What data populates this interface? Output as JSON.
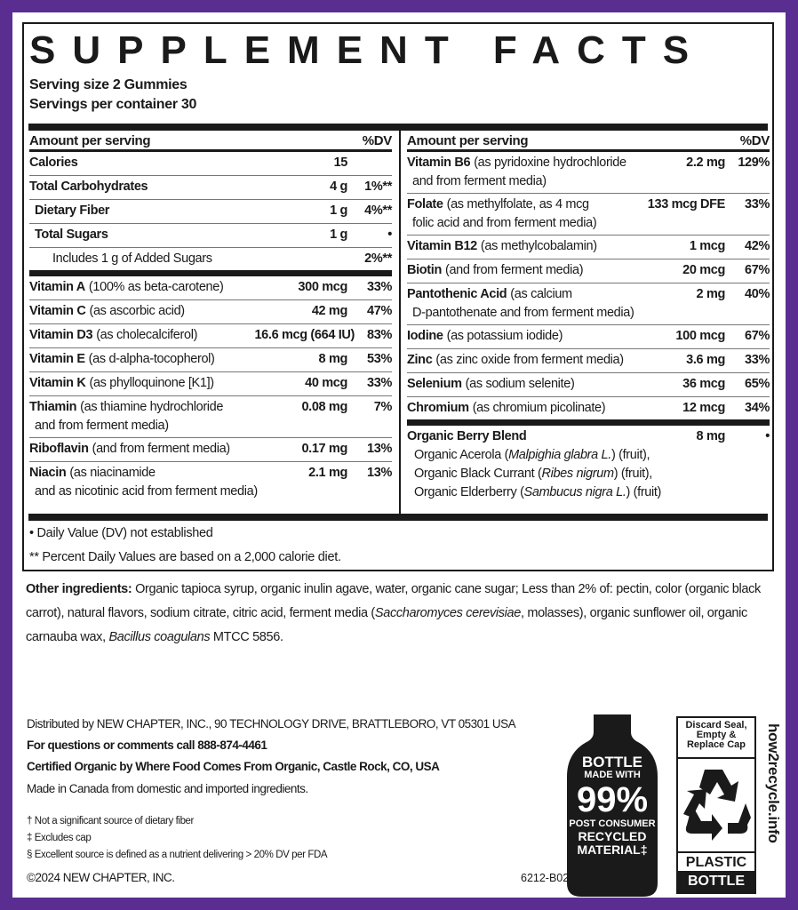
{
  "title": "SUPPLEMENT FACTS",
  "serving_size": "Serving size 2 Gummies",
  "servings_per_container": "Servings per container 30",
  "col_header": {
    "amount": "Amount per serving",
    "dv": "%DV"
  },
  "left_rows": [
    {
      "name": "Calories",
      "desc": "",
      "amount": "15",
      "dv": "",
      "indent": 0
    },
    {
      "name": "Total Carbohydrates",
      "desc": "",
      "amount": "4 g",
      "dv": "1%**",
      "indent": 0
    },
    {
      "name": "Dietary Fiber",
      "desc": "",
      "amount": "1 g",
      "dv": "4%**",
      "indent": 1
    },
    {
      "name": "Total Sugars",
      "desc": "",
      "amount": "1 g",
      "dv": "•",
      "indent": 1
    },
    {
      "name": "",
      "desc": "Includes 1 g of Added Sugars",
      "amount": "",
      "dv": "2%**",
      "indent": 2,
      "thick": true
    },
    {
      "name": "Vitamin A",
      "desc": "(100% as beta-carotene)",
      "amount": "300 mcg",
      "dv": "33%"
    },
    {
      "name": "Vitamin C",
      "desc": "(as ascorbic acid)",
      "amount": "42 mg",
      "dv": "47%"
    },
    {
      "name": "Vitamin D3",
      "desc": "(as cholecalciferol)",
      "amount": "16.6 mcg (664 IU)",
      "dv": "83%",
      "wide": true
    },
    {
      "name": "Vitamin E",
      "desc": "(as d-alpha-tocopherol)",
      "amount": "8 mg",
      "dv": "53%"
    },
    {
      "name": "Vitamin K",
      "desc": "(as phylloquinone [K1])",
      "amount": "40 mcg",
      "dv": "33%"
    },
    {
      "name": "Thiamin",
      "desc": "(as thiamine hydrochloride",
      "desc2": "and from ferment media)",
      "amount": "0.08 mg",
      "dv": "7%"
    },
    {
      "name": "Riboflavin",
      "desc": "(and from ferment media)",
      "amount": "0.17 mg",
      "dv": "13%"
    },
    {
      "name": "Niacin",
      "desc": "(as niacinamide",
      "desc2": "and as nicotinic acid from ferment media)",
      "amount": "2.1 mg",
      "dv": "13%",
      "last": true
    }
  ],
  "right_rows": [
    {
      "name": "Vitamin B6",
      "desc": "(as pyridoxine hydrochloride",
      "desc2": "and from ferment media)",
      "amount": "2.2 mg",
      "dv": "129%"
    },
    {
      "name": "Folate",
      "desc": "(as methylfolate, as 4 mcg",
      "desc2": "folic acid and from ferment media)",
      "amount": "133 mcg DFE",
      "dv": "33%"
    },
    {
      "name": "Vitamin B12",
      "desc": "(as methylcobalamin)",
      "amount": "1 mcg",
      "dv": "42%"
    },
    {
      "name": "Biotin",
      "desc": "(and from ferment media)",
      "amount": "20 mcg",
      "dv": "67%"
    },
    {
      "name": "Pantothenic Acid",
      "desc": "(as calcium",
      "desc2": "D-pantothenate and from ferment media)",
      "amount": "2 mg",
      "dv": "40%"
    },
    {
      "name": "Iodine",
      "desc": "(as potassium iodide)",
      "amount": "100 mcg",
      "dv": "67%"
    },
    {
      "name": "Zinc",
      "desc": "(as zinc oxide from ferment media)",
      "amount": "3.6 mg",
      "dv": "33%"
    },
    {
      "name": "Selenium",
      "desc": "(as sodium selenite)",
      "amount": "36 mcg",
      "dv": "65%"
    },
    {
      "name": "Chromium",
      "desc": "(as chromium picolinate)",
      "amount": "12 mcg",
      "dv": "34%",
      "thick": true
    }
  ],
  "berry_blend": {
    "name": "Organic Berry Blend",
    "amount": "8 mg",
    "dv": "•",
    "lines": [
      [
        {
          "t": "Organic Acerola ("
        },
        {
          "t": "Malpighia glabra L.",
          "i": true
        },
        {
          "t": ") (fruit),"
        }
      ],
      [
        {
          "t": "Organic Black Currant ("
        },
        {
          "t": "Ribes nigrum",
          "i": true
        },
        {
          "t": ") (fruit),"
        }
      ],
      [
        {
          "t": "Organic Elderberry ("
        },
        {
          "t": "Sambucus nigra L.",
          "i": true
        },
        {
          "t": ") (fruit)"
        }
      ]
    ]
  },
  "footnotes": [
    "• Daily Value (DV) not established",
    "** Percent Daily Values are based on a 2,000 calorie diet."
  ],
  "other_ingredients": [
    {
      "t": "Other ingredients:",
      "b": true
    },
    {
      "t": " Organic tapioca syrup, organic inulin agave, water, organic cane sugar; Less than 2% of: pectin, color (organic black carrot), natural flavors, sodium citrate, citric acid, ferment media ("
    },
    {
      "t": "Saccharomyces cerevisiae",
      "i": true
    },
    {
      "t": ", molasses), organic sunflower oil, organic carnauba wax, "
    },
    {
      "t": "Bacillus coagulans",
      "i": true
    },
    {
      "t": " MTCC 5856."
    }
  ],
  "distribution": [
    "Distributed by NEW CHAPTER, INC., 90 TECHNOLOGY DRIVE, BRATTLEBORO, VT 05301 USA",
    "For questions or comments call 888-874-4461",
    "Certified Organic by Where Food Comes From Organic, Castle Rock, CO, USA",
    "Made in Canada from domestic and imported ingredients."
  ],
  "small_notes": [
    "† Not a significant source of dietary fiber",
    "‡ Excludes cap",
    "§ Excellent source is defined as a nutrient delivering > 20% DV per FDA"
  ],
  "copyright": "©2024 NEW CHAPTER, INC.",
  "code": "6212-B02",
  "bottle_badge": {
    "l1": "BOTTLE",
    "l2": "MADE WITH",
    "l3": "99%",
    "l4": "POST CONSUMER",
    "l5": "RECYCLED",
    "l6": "MATERIAL‡"
  },
  "recycle_label": {
    "top": "Discard Seal, Empty & Replace Cap",
    "mid": "PLASTIC",
    "bottom": "BOTTLE",
    "icon": "recycle-icon",
    "site": "how2recycle.info"
  },
  "colors": {
    "frame": "#5a2d91",
    "ink": "#1a1a1a"
  }
}
